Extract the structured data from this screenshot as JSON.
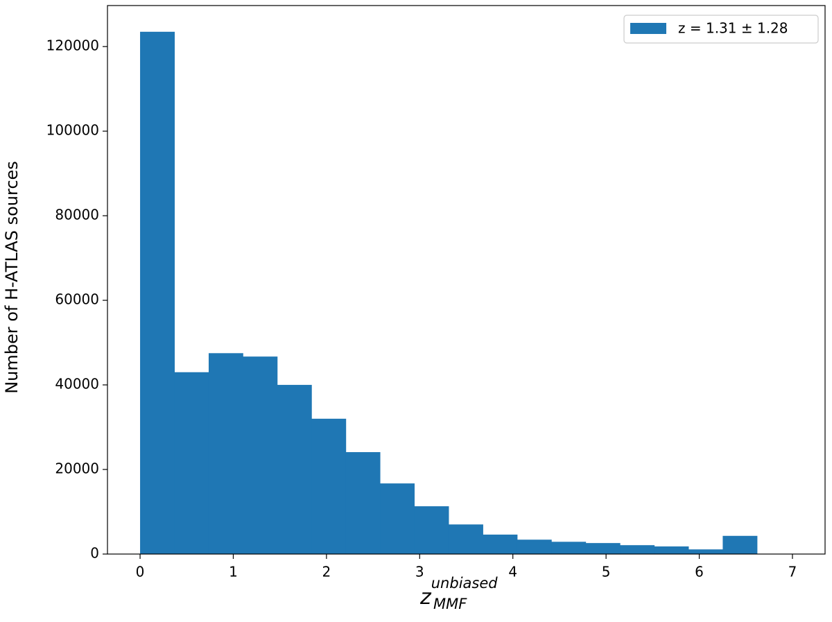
{
  "chart_data": {
    "type": "histogram",
    "xlabel": {
      "base": "z",
      "sub": "MMF",
      "sup": "unbiased"
    },
    "ylabel": "Number of H-ATLAS sources",
    "bins": [
      0,
      0.368,
      0.736,
      1.103,
      1.471,
      1.839,
      2.207,
      2.574,
      2.942,
      3.31,
      3.678,
      4.046,
      4.413,
      4.781,
      5.149,
      5.517,
      5.884,
      6.252,
      6.62
    ],
    "series": [
      {
        "name": "z = 1.31 ± 1.28",
        "color": "#1f77b4",
        "values": [
          123500,
          43000,
          47500,
          46700,
          40000,
          32000,
          24100,
          16700,
          11300,
          7000,
          4600,
          3400,
          2900,
          2600,
          2100,
          1800,
          1100,
          4300
        ]
      }
    ],
    "xlim": [
      -0.35,
      7.35
    ],
    "ylim": [
      0,
      129700
    ],
    "xticks": [
      0,
      1,
      2,
      3,
      4,
      5,
      6,
      7
    ],
    "yticks": [
      0,
      20000,
      40000,
      60000,
      80000,
      100000,
      120000
    ],
    "legend": "upper right"
  }
}
